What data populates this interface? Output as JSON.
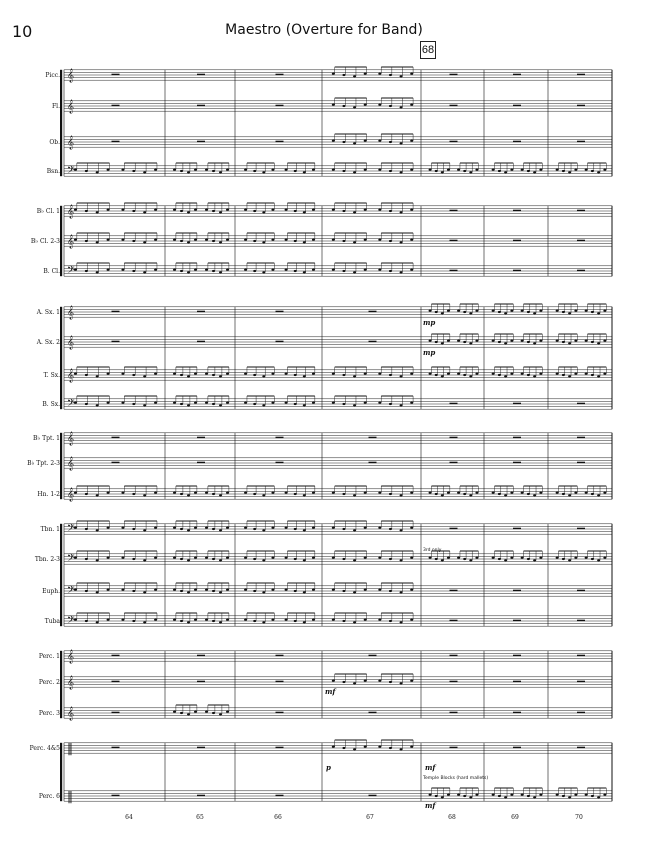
{
  "page": {
    "number": "10",
    "title": "Maestro (Overture for Band)"
  },
  "rehearsal_mark": "68",
  "instruments": [
    "Picc.",
    "Fl.",
    "Ob.",
    "Bsn.",
    "B♭ Cl. 1",
    "B♭ Cl. 2-3",
    "B. Cl.",
    "A. Sx. 1",
    "A. Sx. 2",
    "T. Sx.",
    "B. Sx.",
    "B♭ Tpt. 1",
    "B♭ Tpt. 2-3",
    "Hn. 1-2",
    "Tbn. 1",
    "Tbn. 2-3",
    "Euph.",
    "Tuba",
    "Perc. 1",
    "Perc. 2",
    "Perc. 3",
    "Perc. 4&5",
    "Perc. 6"
  ],
  "measure_numbers": [
    "64",
    "65",
    "66",
    "67",
    "68",
    "69",
    "70"
  ],
  "markings": {
    "asx1_dyn": "mp",
    "asx2_dyn": "mp",
    "perc2_dyn": "mf",
    "perc45_dyn_a": "mf",
    "perc45_dyn_b": "p",
    "perc6_dyn": "mf",
    "tbn23_note": "3rd only",
    "perc6_note": "Temple Blocks (hard mallets)"
  }
}
